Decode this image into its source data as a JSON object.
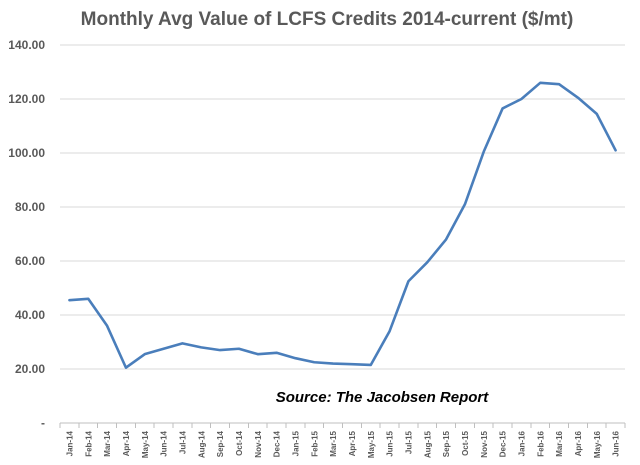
{
  "chart_data": {
    "type": "line",
    "title": "Monthly Avg Value of LCFS Credits 2014-current ($/mt)",
    "xlabel": "",
    "ylabel": "",
    "categories": [
      "Jan-14",
      "Feb-14",
      "Mar-14",
      "Apr-14",
      "May-14",
      "Jun-14",
      "Jul-14",
      "Aug-14",
      "Sep-14",
      "Oct-14",
      "Nov-14",
      "Dec-14",
      "Jan-15",
      "Feb-15",
      "Mar-15",
      "Apr-15",
      "May-15",
      "Jun-15",
      "Jul-15",
      "Aug-15",
      "Sep-15",
      "Oct-15",
      "Nov-15",
      "Dec-15",
      "Jan-16",
      "Feb-16",
      "Mar-16",
      "Apr-16",
      "May-16",
      "Jun-16"
    ],
    "series": [
      {
        "values": [
          45.5,
          46.0,
          36.0,
          20.5,
          25.5,
          27.5,
          29.5,
          28.0,
          27.0,
          27.5,
          25.5,
          26.0,
          24.0,
          22.5,
          22.0,
          21.8,
          21.5,
          34.0,
          52.5,
          59.5,
          68.0,
          81.0,
          100.5,
          116.5,
          120.0,
          126.0,
          125.5,
          120.5,
          114.5,
          101.0
        ]
      }
    ],
    "y_tick_labels": [
      "-",
      "20.00",
      "40.00",
      "60.00",
      "80.00",
      "100.00",
      "120.00",
      "140.00"
    ],
    "y_tick_values": [
      0,
      20,
      40,
      60,
      80,
      100,
      120,
      140
    ],
    "ylim": [
      0,
      140
    ],
    "grid": true,
    "legend": "none",
    "annotation": "Source: The Jacobsen Report",
    "line_color": "#4a7ebb"
  }
}
